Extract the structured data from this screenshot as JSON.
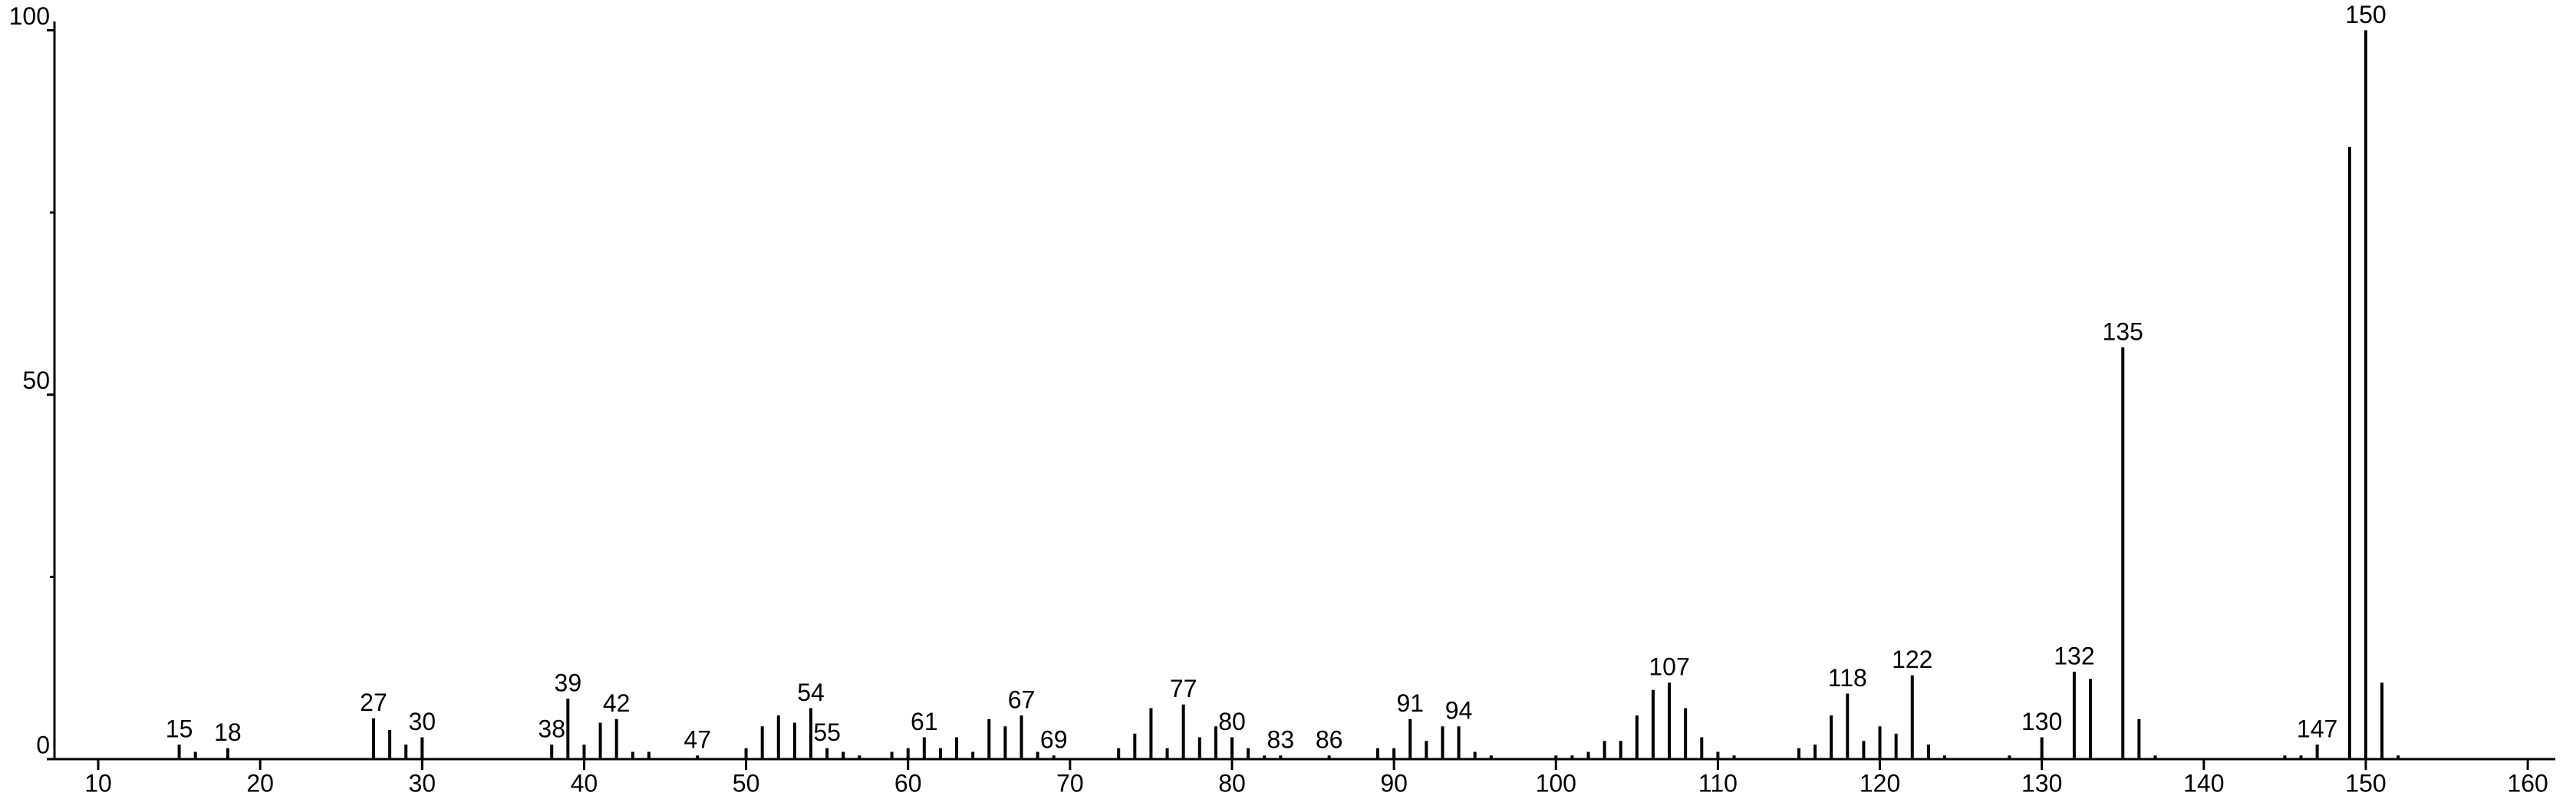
{
  "chart_data": {
    "type": "stick",
    "x": [
      15,
      16,
      18,
      27,
      28,
      29,
      30,
      38,
      39,
      40,
      41,
      42,
      43,
      44,
      47,
      50,
      51,
      52,
      53,
      54,
      55,
      56,
      57,
      59,
      60,
      61,
      62,
      63,
      64,
      65,
      66,
      67,
      68,
      69,
      73,
      74,
      75,
      76,
      77,
      78,
      79,
      80,
      81,
      82,
      83,
      86,
      89,
      90,
      91,
      92,
      93,
      94,
      95,
      96,
      100,
      101,
      102,
      103,
      104,
      105,
      106,
      107,
      108,
      109,
      110,
      111,
      115,
      116,
      117,
      118,
      119,
      120,
      121,
      122,
      123,
      124,
      128,
      130,
      132,
      133,
      135,
      136,
      137,
      145,
      146,
      147,
      149,
      150,
      151,
      152
    ],
    "values": [
      2,
      1,
      1.5,
      5.6,
      4,
      2,
      3,
      2,
      8.3,
      2,
      5,
      5.5,
      1,
      1,
      0.5,
      1.5,
      4.5,
      6,
      5,
      7,
      1.5,
      1,
      0.5,
      1,
      1.5,
      3,
      1.5,
      3,
      1,
      5.5,
      4.5,
      6,
      1,
      0.5,
      1.5,
      3.5,
      7,
      1.5,
      7.5,
      3,
      4.5,
      3,
      1.5,
      0.5,
      0.5,
      0.5,
      1.5,
      1.5,
      5.5,
      2.5,
      4.5,
      4.5,
      1,
      0.5,
      0.5,
      0.5,
      1,
      2.5,
      2.5,
      6,
      9.5,
      10.5,
      7,
      3,
      1,
      0.5,
      1.5,
      2,
      6,
      9,
      2.5,
      4.5,
      3.5,
      11.5,
      2,
      0.5,
      0.5,
      3,
      12,
      11,
      56.5,
      5.5,
      0.5,
      0.5,
      0.5,
      2,
      84,
      100,
      10.5,
      0.5
    ],
    "labeled": [
      true,
      false,
      true,
      true,
      false,
      false,
      true,
      true,
      true,
      false,
      false,
      true,
      false,
      false,
      true,
      false,
      false,
      false,
      false,
      true,
      true,
      false,
      false,
      false,
      false,
      true,
      false,
      false,
      false,
      false,
      false,
      true,
      false,
      true,
      false,
      false,
      false,
      false,
      true,
      false,
      false,
      true,
      false,
      false,
      true,
      true,
      false,
      false,
      true,
      false,
      false,
      true,
      false,
      false,
      false,
      false,
      false,
      false,
      false,
      false,
      false,
      true,
      false,
      false,
      false,
      false,
      false,
      false,
      false,
      true,
      false,
      false,
      false,
      true,
      false,
      false,
      false,
      true,
      true,
      false,
      true,
      false,
      false,
      false,
      false,
      true,
      false,
      true,
      false,
      false
    ],
    "color": "#000000",
    "xlim": [
      7.3,
      161.7
    ],
    "xticks": [
      10,
      20,
      30,
      40,
      50,
      60,
      70,
      80,
      90,
      100,
      110,
      120,
      130,
      140,
      150,
      160
    ],
    "ylim": [
      0,
      101
    ],
    "yticks": [
      0,
      50,
      100
    ],
    "yminorticks": [
      25,
      75
    ]
  }
}
